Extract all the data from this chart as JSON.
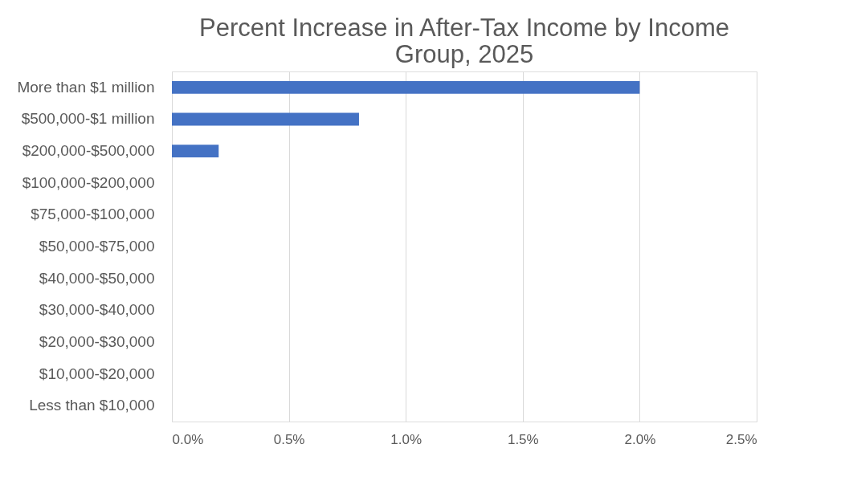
{
  "chart_data": {
    "type": "bar",
    "orientation": "horizontal",
    "title": "Percent Increase in After-Tax Income by Income Group, 2025",
    "categories": [
      "More than $1 million",
      "$500,000-$1 million",
      "$200,000-$500,000",
      "$100,000-$200,000",
      "$75,000-$100,000",
      "$50,000-$75,000",
      "$40,000-$50,000",
      "$30,000-$40,000",
      "$20,000-$30,000",
      "$10,000-$20,000",
      "Less than $10,000"
    ],
    "values": [
      2.0,
      0.8,
      0.2,
      0,
      0,
      0,
      0,
      0,
      0,
      0,
      0
    ],
    "color": "#4472c4",
    "xlim": [
      0,
      2.5
    ],
    "xticks": [
      {
        "value": 0,
        "label": "0.0%"
      },
      {
        "value": 0.5,
        "label": "0.5%"
      },
      {
        "value": 1.0,
        "label": "1.0%"
      },
      {
        "value": 1.5,
        "label": "1.5%"
      },
      {
        "value": 2.0,
        "label": "2.0%"
      },
      {
        "value": 2.5,
        "label": "2.5%"
      }
    ],
    "grid": "x"
  }
}
